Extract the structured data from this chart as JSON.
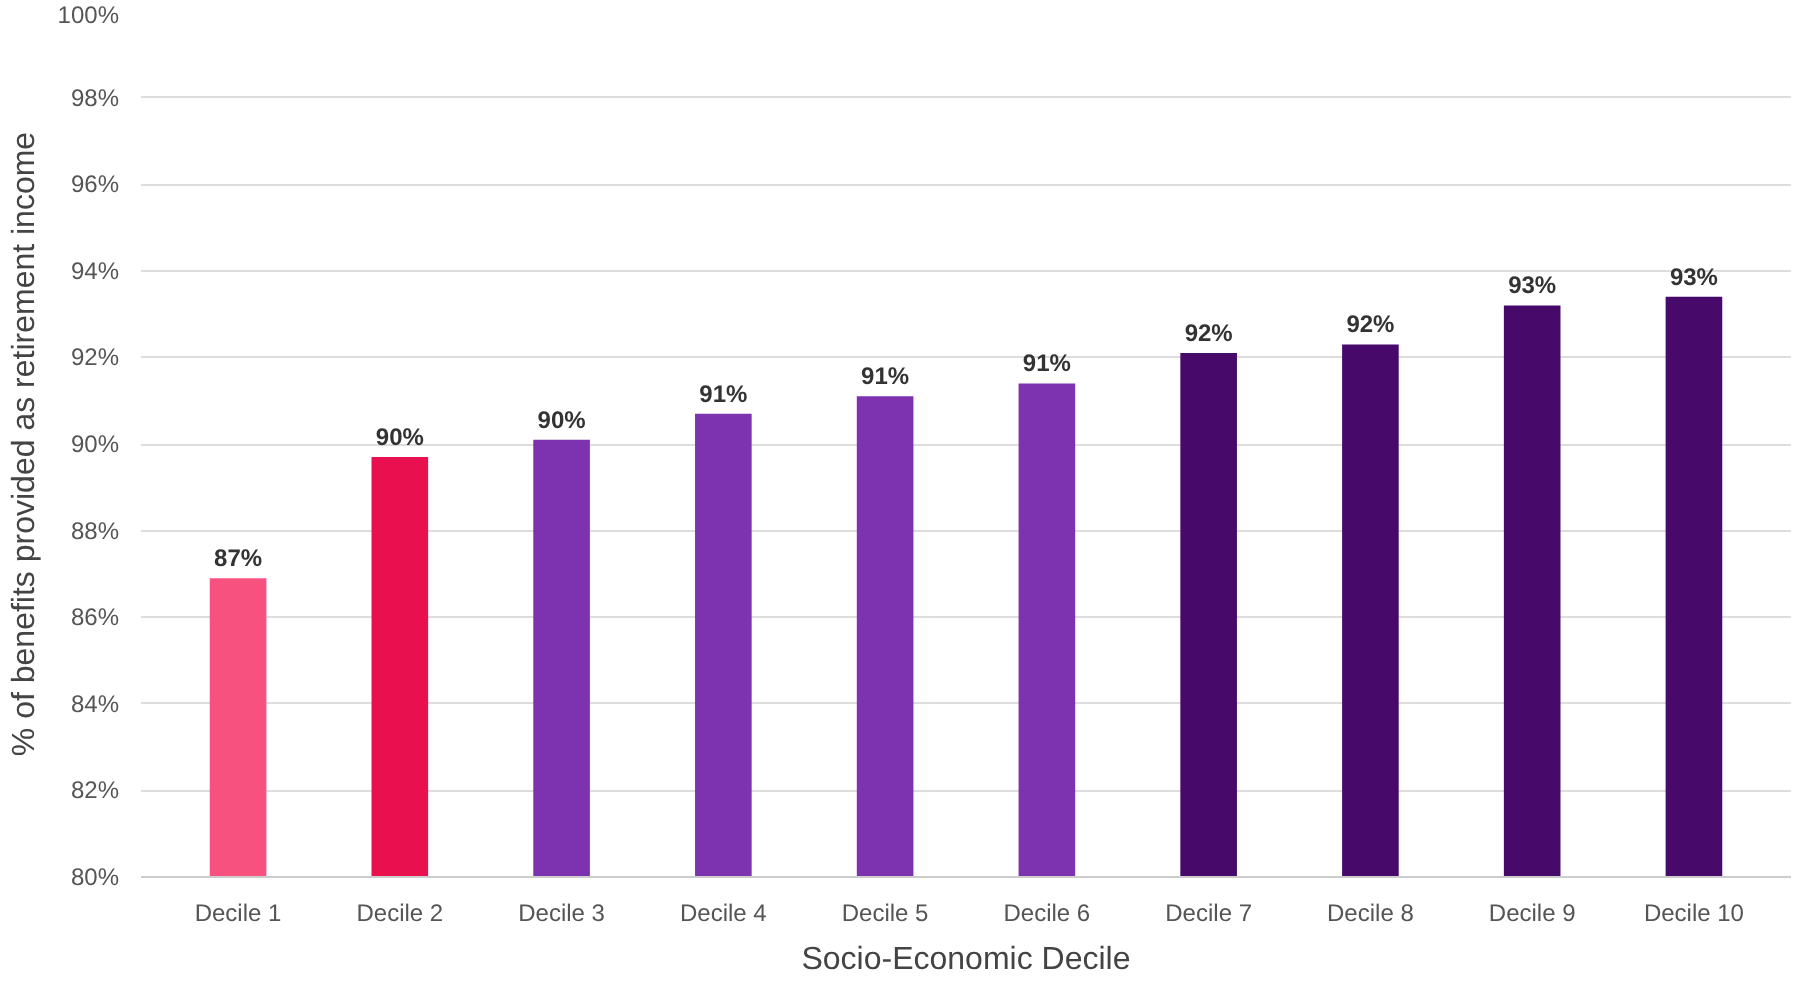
{
  "chart_data": {
    "type": "bar",
    "xlabel": "Socio-Economic Decile",
    "ylabel": "% of benefits provided as retirement income",
    "categories": [
      "Decile 1",
      "Decile 2",
      "Decile 3",
      "Decile 4",
      "Decile 5",
      "Decile 6",
      "Decile 7",
      "Decile 8",
      "Decile 9",
      "Decile 10"
    ],
    "values": [
      86.9,
      89.7,
      90.1,
      90.7,
      91.1,
      91.4,
      92.1,
      92.3,
      93.2,
      93.4
    ],
    "value_labels": [
      "87%",
      "90%",
      "90%",
      "91%",
      "91%",
      "91%",
      "92%",
      "92%",
      "93%",
      "93%"
    ],
    "colors": [
      "#f7527f",
      "#e8104f",
      "#7d32b0",
      "#7d32b0",
      "#7d32b0",
      "#7d32b0",
      "#470a6b",
      "#470a6b",
      "#470a6b",
      "#470a6b"
    ],
    "ylim": [
      80,
      100
    ],
    "yticks": [
      {
        "value": 80,
        "label": "80%"
      },
      {
        "value": 82,
        "label": "82%"
      },
      {
        "value": 84,
        "label": "84%"
      },
      {
        "value": 86,
        "label": "86%"
      },
      {
        "value": 88,
        "label": "88%"
      },
      {
        "value": 90,
        "label": "90%"
      },
      {
        "value": 92,
        "label": "92%"
      },
      {
        "value": 94,
        "label": "94%"
      },
      {
        "value": 96,
        "label": "96%"
      },
      {
        "value": 98,
        "label": "98%"
      },
      {
        "value": 100,
        "label": "100%"
      }
    ],
    "grid": "y"
  }
}
